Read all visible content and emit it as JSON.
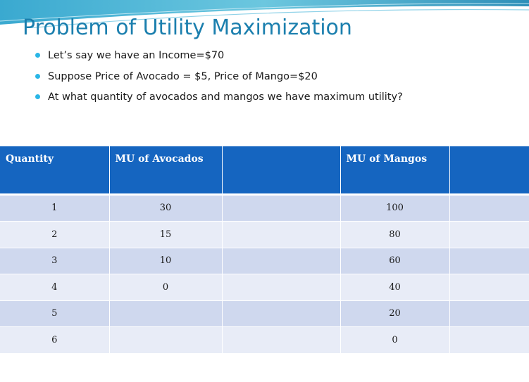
{
  "slide": {
    "title": "Problem of Utility Maximization",
    "bullets": [
      "Let’s say we have an Income=$70",
      "Suppose Price of Avocado = $5, Price of Mango=$20",
      "At what quantity of avocados and mangos we have maximum utility?"
    ],
    "colors": {
      "title": "#1b7fae",
      "bullet": "#2ab6e6",
      "header_bg": "#1565c0",
      "row_odd": "#cfd8ee",
      "row_even": "#e8ecf7"
    }
  },
  "table": {
    "headers": [
      "Quantity",
      "MU of Avocados",
      "",
      "MU of Mangos",
      ""
    ],
    "rows": [
      [
        "1",
        "30",
        "",
        "100",
        ""
      ],
      [
        "2",
        "15",
        "",
        "80",
        ""
      ],
      [
        "3",
        "10",
        "",
        "60",
        ""
      ],
      [
        "4",
        "0",
        "",
        "40",
        ""
      ],
      [
        "5",
        "",
        "",
        "20",
        ""
      ],
      [
        "6",
        "",
        "",
        "0",
        ""
      ]
    ]
  }
}
